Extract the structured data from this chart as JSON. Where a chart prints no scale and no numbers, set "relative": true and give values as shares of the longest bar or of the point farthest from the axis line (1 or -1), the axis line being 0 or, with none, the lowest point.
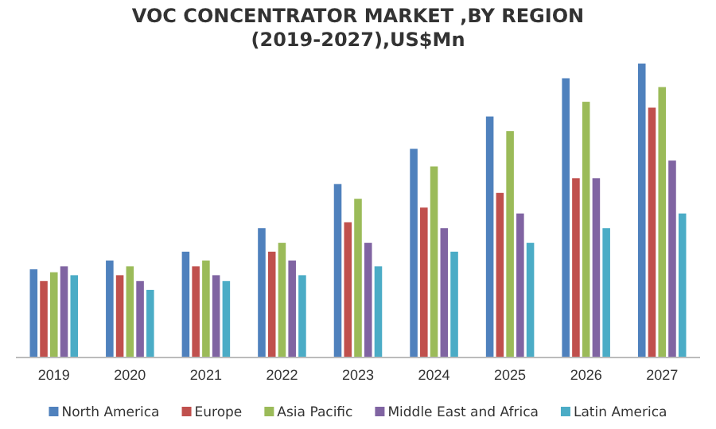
{
  "chart_data": {
    "type": "bar",
    "title": "VOC CONCENTRATOR MARKET ,BY REGION\n(2019-2027),US$Mn",
    "relative": true,
    "legend": "bottom",
    "categories": [
      "2019",
      "2020",
      "2021",
      "2022",
      "2023",
      "2024",
      "2025",
      "2026",
      "2027"
    ],
    "series": [
      {
        "name": "North America",
        "color": "#4f81bd",
        "values": [
          0.3,
          0.33,
          0.36,
          0.44,
          0.59,
          0.71,
          0.82,
          0.95,
          1
        ]
      },
      {
        "name": "Europe",
        "color": "#c0504d",
        "values": [
          0.26,
          0.28,
          0.31,
          0.36,
          0.46,
          0.51,
          0.56,
          0.61,
          0.85
        ]
      },
      {
        "name": "Asia Pacific",
        "color": "#9bbb59",
        "values": [
          0.29,
          0.31,
          0.33,
          0.39,
          0.54,
          0.65,
          0.77,
          0.87,
          0.92
        ]
      },
      {
        "name": "Middle East and Africa",
        "color": "#8064a2",
        "values": [
          0.31,
          0.26,
          0.28,
          0.33,
          0.39,
          0.44,
          0.49,
          0.61,
          0.67
        ]
      },
      {
        "name": "Latin America",
        "color": "#4bacc6",
        "values": [
          0.28,
          0.23,
          0.26,
          0.28,
          0.31,
          0.36,
          0.39,
          0.44,
          0.49
        ]
      }
    ]
  }
}
